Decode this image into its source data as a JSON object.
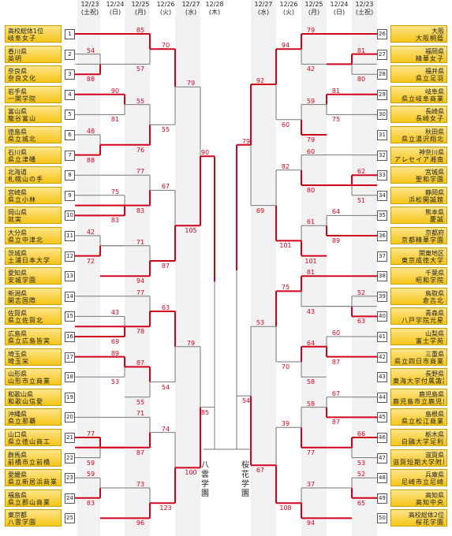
{
  "dates": [
    "12/23\n(土祝)",
    "12/24\n(日)",
    "12/25\n(月)",
    "12/26\n(火)",
    "12/27\n(水)",
    "12/28\n(木)",
    "12/27\n(水)",
    "12/26\n(火)",
    "12/25\n(月)",
    "12/24\n(日)",
    "12/23\n(土祝)"
  ],
  "left_teams": [
    {
      "seed": "1",
      "pref": "高校総体1位",
      "school": "岐阜女子"
    },
    {
      "seed": "2",
      "pref": "香川県",
      "school": "英明"
    },
    {
      "seed": "3",
      "pref": "奈良県",
      "school": "奈良文化"
    },
    {
      "seed": "4",
      "pref": "岩手県",
      "school": "一関学院"
    },
    {
      "seed": "5",
      "pref": "富山県",
      "school": "龍谷富山"
    },
    {
      "seed": "6",
      "pref": "徳島県",
      "school": "県立城北"
    },
    {
      "seed": "7",
      "pref": "石川県",
      "school": "県立津幡"
    },
    {
      "seed": "8",
      "pref": "北海道",
      "school": "札幌山の手"
    },
    {
      "seed": "9",
      "pref": "宮崎県",
      "school": "県立小林"
    },
    {
      "seed": "10",
      "pref": "岡山県",
      "school": "就実"
    },
    {
      "seed": "11",
      "pref": "大分県",
      "school": "県立中津北"
    },
    {
      "seed": "12",
      "pref": "茨城県",
      "school": "土浦日本大学"
    },
    {
      "seed": "13",
      "pref": "愛知県",
      "school": "安城学園"
    },
    {
      "seed": "14",
      "pref": "新潟県",
      "school": "開志国際"
    },
    {
      "seed": "15",
      "pref": "佐賀県",
      "school": "県立佐賀北"
    },
    {
      "seed": "16",
      "pref": "広島県",
      "school": "県立広島皆実"
    },
    {
      "seed": "17",
      "pref": "埼玉県",
      "school": "埼玉栄"
    },
    {
      "seed": "18",
      "pref": "山形県",
      "school": "山形市立商業"
    },
    {
      "seed": "19",
      "pref": "和歌山県",
      "school": "和歌山信愛"
    },
    {
      "seed": "20",
      "pref": "沖縄県",
      "school": "県立那覇"
    },
    {
      "seed": "21",
      "pref": "山口県",
      "school": "県立徳山商工"
    },
    {
      "seed": "22",
      "pref": "群馬県",
      "school": "前橋市立前橋"
    },
    {
      "seed": "23",
      "pref": "愛媛県",
      "school": "県立新居浜商業"
    },
    {
      "seed": "24",
      "pref": "福島県",
      "school": "県立郡山商業"
    },
    {
      "seed": "25",
      "pref": "東京都",
      "school": "八雲学園"
    }
  ],
  "right_teams": [
    {
      "seed": "26",
      "pref": "大阪",
      "school": "大阪桐蔭"
    },
    {
      "seed": "27",
      "pref": "福岡県",
      "school": "精華女子"
    },
    {
      "seed": "28",
      "pref": "福井県",
      "school": "県立足羽"
    },
    {
      "seed": "29",
      "pref": "岐阜県",
      "school": "県立岐阜商業"
    },
    {
      "seed": "30",
      "pref": "長崎県",
      "school": "長崎女子"
    },
    {
      "seed": "31",
      "pref": "秋田県",
      "school": "県立湯沢翔北"
    },
    {
      "seed": "32",
      "pref": "神奈川県",
      "school": "アレセイア湘南"
    },
    {
      "seed": "33",
      "pref": "宮城県",
      "school": "聖和学園"
    },
    {
      "seed": "34",
      "pref": "静岡県",
      "school": "浜松開誠館"
    },
    {
      "seed": "35",
      "pref": "熊本県",
      "school": "慶誠"
    },
    {
      "seed": "36",
      "pref": "京都府",
      "school": "京都精華学園"
    },
    {
      "seed": "37",
      "pref": "関東地区",
      "school": "東京成徳大学"
    },
    {
      "seed": "38",
      "pref": "千葉県",
      "school": "昭和学院"
    },
    {
      "seed": "39",
      "pref": "鳥取県",
      "school": "倉吉北"
    },
    {
      "seed": "40",
      "pref": "青森県",
      "school": "八戸学院光星"
    },
    {
      "seed": "41",
      "pref": "山梨県",
      "school": "富士学苑"
    },
    {
      "seed": "42",
      "pref": "三重県",
      "school": "県立四日市商業"
    },
    {
      "seed": "43",
      "pref": "長野県",
      "school": "東海大学付属諏訪"
    },
    {
      "seed": "44",
      "pref": "鹿児島県",
      "school": "鹿児島市立鹿児島女子"
    },
    {
      "seed": "45",
      "pref": "島根県",
      "school": "県立松江商業"
    },
    {
      "seed": "46",
      "pref": "栃木県",
      "school": "白鷗大学足利"
    },
    {
      "seed": "47",
      "pref": "滋賀県",
      "school": "滋賀短期大学附属"
    },
    {
      "seed": "48",
      "pref": "兵庫県",
      "school": "尼崎市立尼崎"
    },
    {
      "seed": "49",
      "pref": "高知県",
      "school": "高知中央"
    },
    {
      "seed": "50",
      "pref": "高校総体2位",
      "school": "桜花学園"
    }
  ],
  "left_scores": {
    "r1": [
      [
        "54",
        "88"
      ],
      [
        "48",
        "88"
      ],
      [
        "42",
        "72"
      ],
      [
        "77",
        "59"
      ],
      [
        "59",
        "83"
      ]
    ],
    "r2": [
      [
        "90",
        "81"
      ],
      [
        "75",
        "83"
      ],
      [
        "43",
        "69"
      ],
      [
        "89",
        "53"
      ]
    ],
    "r3": [
      [
        "85",
        "57"
      ],
      [
        "55",
        "76"
      ],
      [
        "77",
        "83"
      ],
      [
        "71",
        "94"
      ],
      [
        "77",
        "78"
      ],
      [
        "87",
        "55"
      ],
      [
        "71",
        "87"
      ],
      [
        "73",
        "96"
      ]
    ],
    "r4": [
      [
        "70",
        "55"
      ],
      [
        "67",
        "87"
      ],
      [
        "63",
        "54"
      ],
      [
        "74",
        "123"
      ]
    ],
    "r5": [
      [
        "79",
        "105"
      ],
      [
        "79",
        "100"
      ]
    ],
    "sf": [
      "90",
      "85"
    ]
  },
  "right_scores": {
    "r1": [
      [
        "81",
        "80"
      ],
      [
        "62",
        "51"
      ],
      [
        "52",
        "63"
      ],
      [
        "66",
        "53"
      ],
      [
        "52",
        "65"
      ]
    ],
    "r2": [
      [
        "81",
        "75"
      ],
      [
        "64",
        "89"
      ],
      [
        "60",
        "87"
      ],
      [
        "67",
        "87"
      ]
    ],
    "r3": [
      [
        "79",
        "42"
      ],
      [
        "59",
        "79"
      ],
      [
        "60",
        "80"
      ],
      [
        "61",
        "101"
      ],
      [
        "81",
        "43"
      ],
      [
        "64",
        "58"
      ],
      [
        "58",
        "77"
      ],
      [
        "37",
        "94"
      ]
    ],
    "r4": [
      [
        "94",
        "60"
      ],
      [
        "82",
        "101"
      ],
      [
        "75",
        "70"
      ],
      [
        "39",
        "108"
      ]
    ],
    "r5": [
      [
        "92",
        "69"
      ],
      [
        "53",
        "67"
      ]
    ],
    "sf": [
      "79",
      "54"
    ]
  },
  "finalists": {
    "left": "八雲学園",
    "right": "桜花学園"
  },
  "colors": {
    "winner_line": "#d0021b",
    "loser_line": "#777777",
    "team_bg": "#f5c518"
  }
}
